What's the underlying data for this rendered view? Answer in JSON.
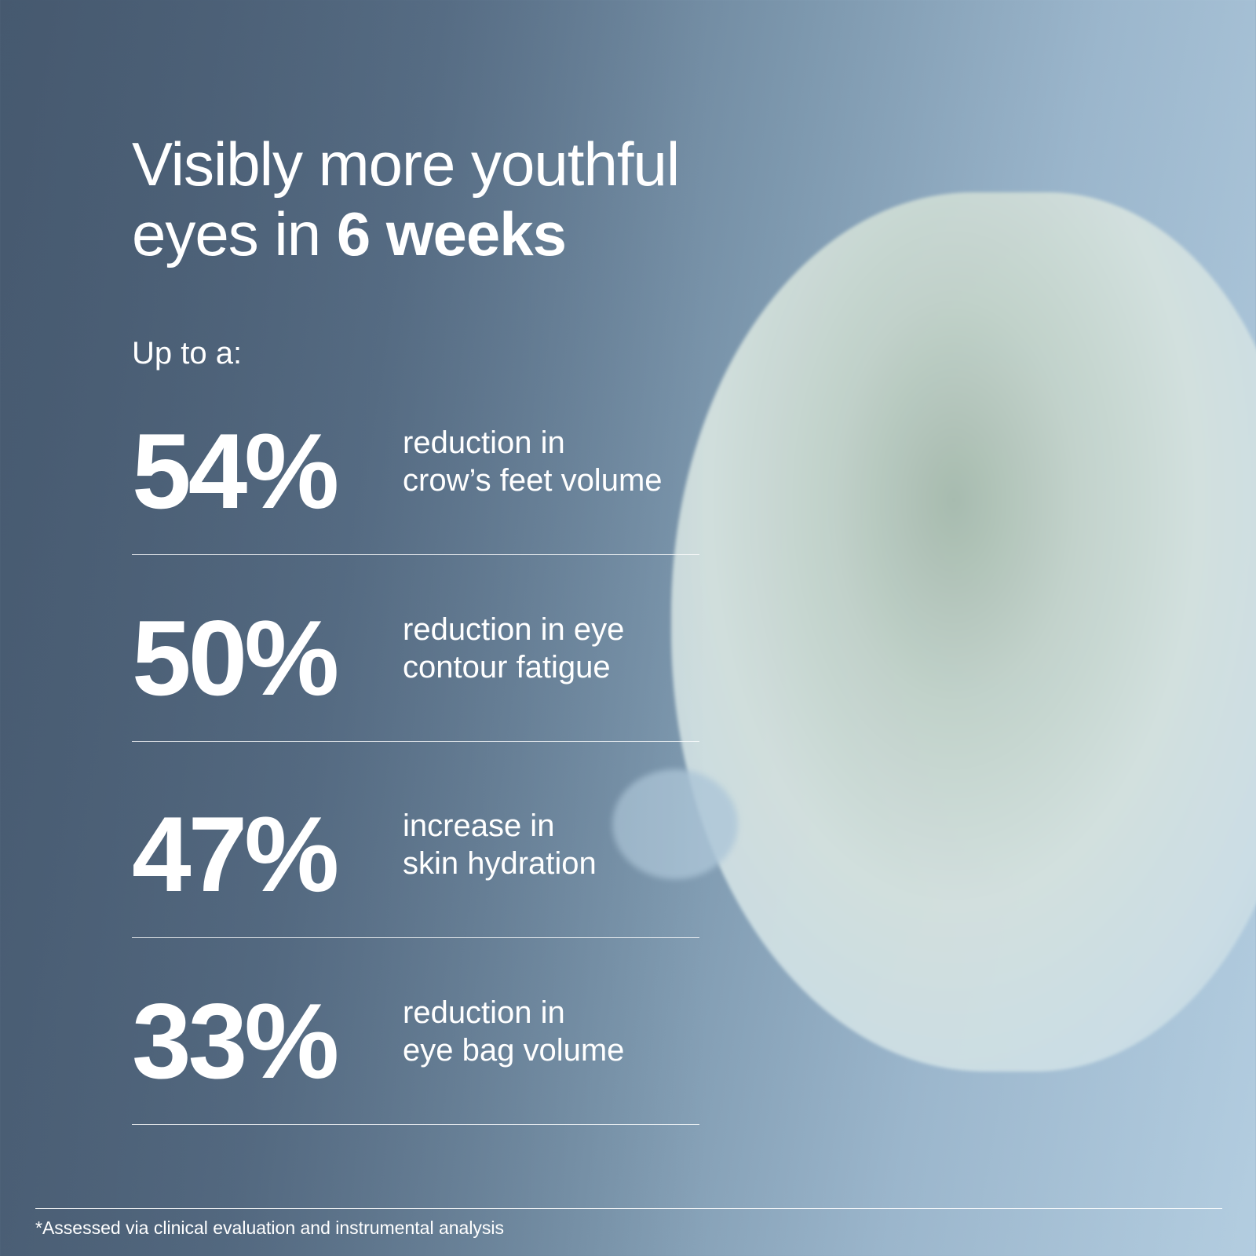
{
  "headline": {
    "line1": "Visibly more youthful",
    "line2_prefix": "eyes in ",
    "line2_bold": "6 weeks"
  },
  "intro": "Up to a:",
  "stats": [
    {
      "value": "54%",
      "line1": "reduction in",
      "line2": "crow’s feet volume"
    },
    {
      "value": "50%",
      "line1": "reduction in eye",
      "line2": "contour fatigue"
    },
    {
      "value": "47%",
      "line1": "increase in",
      "line2": "skin hydration"
    },
    {
      "value": "33%",
      "line1": "reduction in",
      "line2": "eye bag volume"
    }
  ],
  "footnote": "*Assessed via clinical evaluation and instrumental analysis",
  "colors": {
    "background_dark": "#46596f",
    "background_light": "#b3cde0",
    "cream": "#d5e2df",
    "text": "#ffffff"
  }
}
